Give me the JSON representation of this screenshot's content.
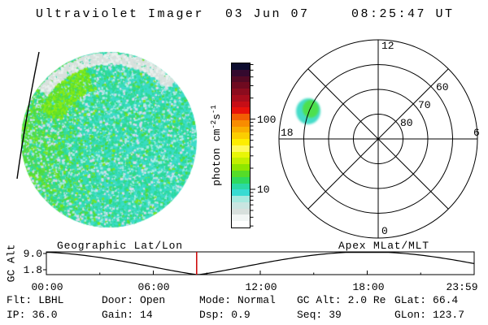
{
  "header": {
    "title": "Ultraviolet Imager",
    "date": "03 Jun 07",
    "time": "08:25:47 UT"
  },
  "colorbar": {
    "label": {
      "text1": "photon cm",
      "sup1": "-2",
      "text2": "s",
      "sup2": "-1"
    },
    "tick_labels": [
      "100",
      "10"
    ],
    "scale": "log",
    "band_colors_top_to_bottom": [
      "#0C0C2E",
      "#34092E",
      "#530924",
      "#6F0A20",
      "#8C0C1E",
      "#A80D1C",
      "#C60E16",
      "#E8120A",
      "#F25E03",
      "#F88C01",
      "#FAAE00",
      "#FCCD00",
      "#FEED00",
      "#FFF95B",
      "#E8F607",
      "#C2EF00",
      "#8EE600",
      "#55DC28",
      "#2ED95E",
      "#2BD9A4",
      "#38DBD2",
      "#A6E9DF",
      "#C9E5E1",
      "#D8E0DD",
      "#F2F6F5",
      "#FFFFFF"
    ]
  },
  "uvi_image": {
    "base_cyan": "#3CDCCB",
    "teal": "#2ED98F",
    "green": "#4FDC3C",
    "bright_green": "#7CE61E",
    "light_cyan": "#A8ECE4",
    "pale_lavender": "#D6DAEE",
    "rim_gray": "#D8E0DD",
    "terminator_color": "#000000"
  },
  "polar_plot": {
    "mlt_top": "12",
    "mlt_left": "18",
    "mlt_right": "6",
    "mlt_bottom": "0",
    "lat_labels": [
      "80",
      "70",
      "60"
    ],
    "blob": {
      "core_color": "#4EE04E",
      "edge_color": "#44DCC8",
      "mlt": 16.8,
      "mlat": 57
    }
  },
  "orbit_plot": {
    "ylabel": "GC Alt",
    "ytick_labels": [
      "9.0",
      "1.8"
    ],
    "xtick_labels": [
      "00:00",
      "06:00",
      "12:00",
      "18:00",
      "23:59"
    ],
    "label_left": "Geographic Lat/Lon",
    "label_right": "Apex MLat/MLT",
    "marker_color": "#CC0000",
    "current_time_hours": 8.43,
    "perigee_re": 1.8,
    "apogee_re": 9.0,
    "perigee_time_hours": 8.5,
    "period_hours": 19
  },
  "status": {
    "rows": [
      [
        {
          "label": "Flt:",
          "value": "LBHL"
        },
        {
          "label": "Door:",
          "value": "Open"
        },
        {
          "label": "Mode:",
          "value": "Normal"
        },
        {
          "label": "GC Alt:",
          "value": "2.0 Re"
        },
        {
          "label": "GLat:",
          "value": "66.4"
        }
      ],
      [
        {
          "label": "IP:",
          "value": "36.0"
        },
        {
          "label": "Gain:",
          "value": "14"
        },
        {
          "label": "Dsp:",
          "value": "0.9"
        },
        {
          "label": "Seq:",
          "value": "39"
        },
        {
          "label": "GLon:",
          "value": "123.7"
        }
      ]
    ]
  },
  "chart_data": [
    {
      "type": "heatmap",
      "title": "Ultraviolet Imager full-disk image",
      "timestamp": "03 Jun 07 08:25:47 UT",
      "colorbar_label": "photon cm-2s-1",
      "scale": "log",
      "colorbar_ticks": [
        10,
        100
      ],
      "disk_intensity_range_photons": [
        5,
        30
      ],
      "features": [
        "speckled dayglow disk mostly 10-20 photons (cyan/green)",
        "brighter green limb on left side",
        "pale saturated rim along top edge",
        "black terminator line crossing left limb"
      ]
    },
    {
      "type": "scatter",
      "title": "Apex MLat/MLT polar dial",
      "rings_mlat": [
        80,
        70,
        60,
        50
      ],
      "mlt_axis_labels": [
        0,
        6,
        12,
        18
      ],
      "points": [
        {
          "mlt": 16.8,
          "mlat": 57,
          "intensity_photons": 20
        }
      ]
    },
    {
      "type": "line",
      "title": "Spacecraft geocentric altitude vs UT",
      "ylabel": "GC Alt",
      "yticks_re": [
        9.0,
        1.8
      ],
      "x_hours": [
        0,
        2,
        4,
        6,
        8,
        8.5,
        10,
        12,
        14,
        16,
        18,
        20,
        22,
        24
      ],
      "values_re": [
        8.9,
        8.0,
        6.3,
        4.2,
        2.2,
        1.8,
        3.1,
        5.3,
        7.2,
        8.5,
        9.0,
        8.5,
        7.2,
        5.3
      ],
      "current_time_marker_hours": 8.43,
      "xlim_hours": [
        0,
        24
      ]
    }
  ]
}
